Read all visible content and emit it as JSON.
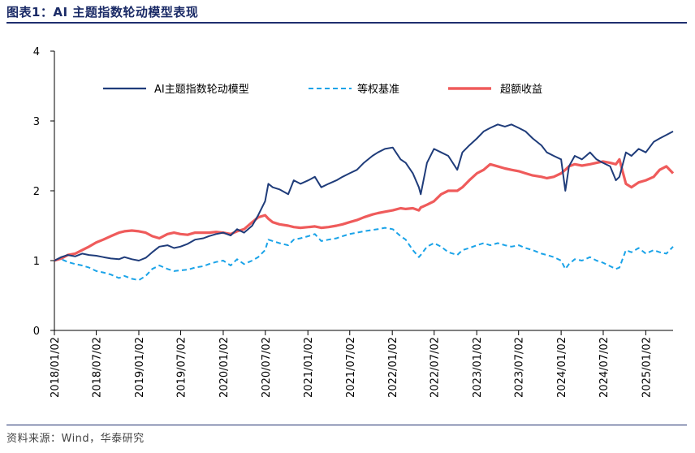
{
  "header": {
    "title": "图表1：AI 主题指数轮动模型表现"
  },
  "footer": {
    "source": "资料来源：Wind，华泰研究"
  },
  "chart_data": {
    "type": "line",
    "y_ticks": [
      "0",
      "1",
      "2",
      "3",
      "4"
    ],
    "ylim": [
      0,
      4
    ],
    "x_tick_labels": [
      "2018/01/02",
      "2018/07/02",
      "2019/01/02",
      "2019/07/02",
      "2020/01/02",
      "2020/07/02",
      "2021/01/02",
      "2021/07/02",
      "2022/01/02",
      "2022/07/02",
      "2023/01/02",
      "2023/07/02",
      "2024/01/02",
      "2024/07/02",
      "2025/01/02"
    ],
    "xlim": [
      "2018/01/02",
      "2025/04/30"
    ],
    "grid": false,
    "legend_position": "top",
    "series": [
      {
        "name": "AI主题指数轮动模型",
        "color": "#1f3c7a",
        "style": "solid",
        "points": [
          [
            "2018/01/02",
            1.0
          ],
          [
            "2018/02/01",
            1.05
          ],
          [
            "2018/03/01",
            1.08
          ],
          [
            "2018/04/02",
            1.06
          ],
          [
            "2018/05/02",
            1.1
          ],
          [
            "2018/06/01",
            1.08
          ],
          [
            "2018/07/02",
            1.07
          ],
          [
            "2018/08/01",
            1.05
          ],
          [
            "2018/09/03",
            1.03
          ],
          [
            "2018/10/08",
            1.02
          ],
          [
            "2018/11/01",
            1.05
          ],
          [
            "2018/12/03",
            1.02
          ],
          [
            "2019/01/02",
            1.0
          ],
          [
            "2019/02/01",
            1.04
          ],
          [
            "2019/03/01",
            1.12
          ],
          [
            "2019/04/01",
            1.2
          ],
          [
            "2019/05/06",
            1.22
          ],
          [
            "2019/06/03",
            1.18
          ],
          [
            "2019/07/01",
            1.2
          ],
          [
            "2019/08/01",
            1.24
          ],
          [
            "2019/09/02",
            1.3
          ],
          [
            "2019/10/08",
            1.32
          ],
          [
            "2019/11/01",
            1.35
          ],
          [
            "2019/12/02",
            1.38
          ],
          [
            "2020/01/02",
            1.4
          ],
          [
            "2020/02/03",
            1.36
          ],
          [
            "2020/03/02",
            1.45
          ],
          [
            "2020/04/01",
            1.4
          ],
          [
            "2020/05/06",
            1.5
          ],
          [
            "2020/06/01",
            1.65
          ],
          [
            "2020/07/01",
            1.85
          ],
          [
            "2020/07/15",
            2.1
          ],
          [
            "2020/08/03",
            2.05
          ],
          [
            "2020/09/01",
            2.02
          ],
          [
            "2020/10/09",
            1.95
          ],
          [
            "2020/11/02",
            2.15
          ],
          [
            "2020/12/01",
            2.1
          ],
          [
            "2021/01/04",
            2.15
          ],
          [
            "2021/02/01",
            2.2
          ],
          [
            "2021/03/01",
            2.05
          ],
          [
            "2021/04/01",
            2.1
          ],
          [
            "2021/05/06",
            2.15
          ],
          [
            "2021/06/01",
            2.2
          ],
          [
            "2021/07/01",
            2.25
          ],
          [
            "2021/08/02",
            2.3
          ],
          [
            "2021/09/01",
            2.4
          ],
          [
            "2021/10/08",
            2.5
          ],
          [
            "2021/11/01",
            2.55
          ],
          [
            "2021/12/01",
            2.6
          ],
          [
            "2022/01/04",
            2.62
          ],
          [
            "2022/02/07",
            2.45
          ],
          [
            "2022/03/01",
            2.4
          ],
          [
            "2022/04/01",
            2.25
          ],
          [
            "2022/04/27",
            2.05
          ],
          [
            "2022/05/05",
            1.95
          ],
          [
            "2022/06/01",
            2.4
          ],
          [
            "2022/07/01",
            2.6
          ],
          [
            "2022/08/01",
            2.55
          ],
          [
            "2022/09/01",
            2.5
          ],
          [
            "2022/10/10",
            2.3
          ],
          [
            "2022/11/01",
            2.55
          ],
          [
            "2022/12/01",
            2.65
          ],
          [
            "2023/01/03",
            2.75
          ],
          [
            "2023/02/01",
            2.85
          ],
          [
            "2023/03/01",
            2.9
          ],
          [
            "2023/04/03",
            2.95
          ],
          [
            "2023/05/04",
            2.92
          ],
          [
            "2023/06/01",
            2.95
          ],
          [
            "2023/07/03",
            2.9
          ],
          [
            "2023/08/01",
            2.85
          ],
          [
            "2023/09/01",
            2.75
          ],
          [
            "2023/10/09",
            2.65
          ],
          [
            "2023/11/01",
            2.55
          ],
          [
            "2023/12/01",
            2.5
          ],
          [
            "2024/01/02",
            2.45
          ],
          [
            "2024/01/20",
            2.0
          ],
          [
            "2024/02/05",
            2.35
          ],
          [
            "2024/03/01",
            2.5
          ],
          [
            "2024/04/01",
            2.45
          ],
          [
            "2024/05/06",
            2.55
          ],
          [
            "2024/06/03",
            2.45
          ],
          [
            "2024/07/01",
            2.4
          ],
          [
            "2024/08/01",
            2.35
          ],
          [
            "2024/08/26",
            2.15
          ],
          [
            "2024/09/10",
            2.2
          ],
          [
            "2024/10/08",
            2.55
          ],
          [
            "2024/11/01",
            2.5
          ],
          [
            "2024/12/02",
            2.6
          ],
          [
            "2025/01/02",
            2.55
          ],
          [
            "2025/02/05",
            2.7
          ],
          [
            "2025/03/03",
            2.75
          ],
          [
            "2025/04/01",
            2.8
          ],
          [
            "2025/04/30",
            2.85
          ]
        ]
      },
      {
        "name": "等权基准",
        "color": "#1aa3e8",
        "style": "dashed",
        "points": [
          [
            "2018/01/02",
            1.0
          ],
          [
            "2018/02/01",
            1.02
          ],
          [
            "2018/03/01",
            0.98
          ],
          [
            "2018/04/02",
            0.95
          ],
          [
            "2018/05/02",
            0.93
          ],
          [
            "2018/06/01",
            0.9
          ],
          [
            "2018/07/02",
            0.85
          ],
          [
            "2018/08/01",
            0.83
          ],
          [
            "2018/09/03",
            0.8
          ],
          [
            "2018/10/08",
            0.75
          ],
          [
            "2018/11/01",
            0.78
          ],
          [
            "2018/12/03",
            0.74
          ],
          [
            "2019/01/02",
            0.72
          ],
          [
            "2019/02/01",
            0.78
          ],
          [
            "2019/03/01",
            0.88
          ],
          [
            "2019/04/01",
            0.93
          ],
          [
            "2019/05/06",
            0.88
          ],
          [
            "2019/06/03",
            0.85
          ],
          [
            "2019/07/01",
            0.86
          ],
          [
            "2019/08/01",
            0.87
          ],
          [
            "2019/09/02",
            0.9
          ],
          [
            "2019/10/08",
            0.92
          ],
          [
            "2019/11/01",
            0.95
          ],
          [
            "2019/12/02",
            0.98
          ],
          [
            "2020/01/02",
            1.0
          ],
          [
            "2020/02/03",
            0.93
          ],
          [
            "2020/03/02",
            1.02
          ],
          [
            "2020/04/01",
            0.95
          ],
          [
            "2020/05/06",
            1.0
          ],
          [
            "2020/06/01",
            1.05
          ],
          [
            "2020/07/01",
            1.15
          ],
          [
            "2020/07/15",
            1.3
          ],
          [
            "2020/08/03",
            1.28
          ],
          [
            "2020/09/01",
            1.25
          ],
          [
            "2020/10/09",
            1.22
          ],
          [
            "2020/11/02",
            1.3
          ],
          [
            "2020/12/01",
            1.32
          ],
          [
            "2021/01/04",
            1.35
          ],
          [
            "2021/02/01",
            1.38
          ],
          [
            "2021/03/01",
            1.28
          ],
          [
            "2021/04/01",
            1.3
          ],
          [
            "2021/05/06",
            1.32
          ],
          [
            "2021/06/01",
            1.35
          ],
          [
            "2021/07/01",
            1.38
          ],
          [
            "2021/08/02",
            1.4
          ],
          [
            "2021/09/01",
            1.42
          ],
          [
            "2021/10/08",
            1.44
          ],
          [
            "2021/11/01",
            1.45
          ],
          [
            "2021/12/01",
            1.47
          ],
          [
            "2022/01/04",
            1.45
          ],
          [
            "2022/02/07",
            1.35
          ],
          [
            "2022/03/01",
            1.3
          ],
          [
            "2022/04/01",
            1.15
          ],
          [
            "2022/04/27",
            1.05
          ],
          [
            "2022/05/05",
            1.08
          ],
          [
            "2022/06/01",
            1.2
          ],
          [
            "2022/07/01",
            1.25
          ],
          [
            "2022/08/01",
            1.2
          ],
          [
            "2022/09/01",
            1.12
          ],
          [
            "2022/10/10",
            1.08
          ],
          [
            "2022/11/01",
            1.15
          ],
          [
            "2022/12/01",
            1.18
          ],
          [
            "2023/01/03",
            1.22
          ],
          [
            "2023/02/01",
            1.25
          ],
          [
            "2023/03/01",
            1.22
          ],
          [
            "2023/04/03",
            1.25
          ],
          [
            "2023/05/04",
            1.22
          ],
          [
            "2023/06/01",
            1.2
          ],
          [
            "2023/07/03",
            1.22
          ],
          [
            "2023/08/01",
            1.18
          ],
          [
            "2023/09/01",
            1.15
          ],
          [
            "2023/10/09",
            1.1
          ],
          [
            "2023/11/01",
            1.08
          ],
          [
            "2023/12/01",
            1.05
          ],
          [
            "2024/01/02",
            1.0
          ],
          [
            "2024/01/20",
            0.88
          ],
          [
            "2024/02/05",
            0.95
          ],
          [
            "2024/03/01",
            1.02
          ],
          [
            "2024/04/01",
            1.0
          ],
          [
            "2024/05/06",
            1.05
          ],
          [
            "2024/06/03",
            1.0
          ],
          [
            "2024/07/01",
            0.97
          ],
          [
            "2024/08/01",
            0.92
          ],
          [
            "2024/08/26",
            0.88
          ],
          [
            "2024/09/10",
            0.9
          ],
          [
            "2024/10/08",
            1.15
          ],
          [
            "2024/11/01",
            1.12
          ],
          [
            "2024/12/02",
            1.18
          ],
          [
            "2025/01/02",
            1.1
          ],
          [
            "2025/02/05",
            1.15
          ],
          [
            "2025/03/03",
            1.12
          ],
          [
            "2025/04/01",
            1.1
          ],
          [
            "2025/04/30",
            1.2
          ]
        ]
      },
      {
        "name": "超额收益",
        "color": "#ef5b5b",
        "style": "solid-thick",
        "points": [
          [
            "2018/01/02",
            1.0
          ],
          [
            "2018/02/01",
            1.03
          ],
          [
            "2018/03/01",
            1.08
          ],
          [
            "2018/04/02",
            1.1
          ],
          [
            "2018/05/02",
            1.15
          ],
          [
            "2018/06/01",
            1.2
          ],
          [
            "2018/07/02",
            1.26
          ],
          [
            "2018/08/01",
            1.3
          ],
          [
            "2018/09/03",
            1.35
          ],
          [
            "2018/10/08",
            1.4
          ],
          [
            "2018/11/01",
            1.42
          ],
          [
            "2018/12/03",
            1.43
          ],
          [
            "2019/01/02",
            1.42
          ],
          [
            "2019/02/01",
            1.4
          ],
          [
            "2019/03/01",
            1.35
          ],
          [
            "2019/04/01",
            1.32
          ],
          [
            "2019/05/06",
            1.38
          ],
          [
            "2019/06/03",
            1.4
          ],
          [
            "2019/07/01",
            1.38
          ],
          [
            "2019/08/01",
            1.37
          ],
          [
            "2019/09/02",
            1.4
          ],
          [
            "2019/10/08",
            1.4
          ],
          [
            "2019/11/01",
            1.4
          ],
          [
            "2019/12/02",
            1.41
          ],
          [
            "2020/01/02",
            1.4
          ],
          [
            "2020/02/03",
            1.38
          ],
          [
            "2020/03/02",
            1.42
          ],
          [
            "2020/04/01",
            1.45
          ],
          [
            "2020/05/06",
            1.55
          ],
          [
            "2020/06/01",
            1.62
          ],
          [
            "2020/07/01",
            1.65
          ],
          [
            "2020/07/15",
            1.6
          ],
          [
            "2020/08/03",
            1.55
          ],
          [
            "2020/09/01",
            1.52
          ],
          [
            "2020/10/09",
            1.5
          ],
          [
            "2020/11/02",
            1.48
          ],
          [
            "2020/12/01",
            1.47
          ],
          [
            "2021/01/04",
            1.48
          ],
          [
            "2021/02/01",
            1.49
          ],
          [
            "2021/03/01",
            1.47
          ],
          [
            "2021/04/01",
            1.48
          ],
          [
            "2021/05/06",
            1.5
          ],
          [
            "2021/06/01",
            1.52
          ],
          [
            "2021/07/01",
            1.55
          ],
          [
            "2021/08/02",
            1.58
          ],
          [
            "2021/09/01",
            1.62
          ],
          [
            "2021/10/08",
            1.66
          ],
          [
            "2021/11/01",
            1.68
          ],
          [
            "2021/12/01",
            1.7
          ],
          [
            "2022/01/04",
            1.72
          ],
          [
            "2022/02/07",
            1.75
          ],
          [
            "2022/03/01",
            1.74
          ],
          [
            "2022/04/01",
            1.75
          ],
          [
            "2022/04/27",
            1.72
          ],
          [
            "2022/05/05",
            1.76
          ],
          [
            "2022/06/01",
            1.8
          ],
          [
            "2022/07/01",
            1.85
          ],
          [
            "2022/08/01",
            1.95
          ],
          [
            "2022/09/01",
            2.0
          ],
          [
            "2022/10/10",
            2.0
          ],
          [
            "2022/11/01",
            2.05
          ],
          [
            "2022/12/01",
            2.15
          ],
          [
            "2023/01/03",
            2.25
          ],
          [
            "2023/02/01",
            2.3
          ],
          [
            "2023/03/01",
            2.38
          ],
          [
            "2023/04/03",
            2.35
          ],
          [
            "2023/05/04",
            2.32
          ],
          [
            "2023/06/01",
            2.3
          ],
          [
            "2023/07/03",
            2.28
          ],
          [
            "2023/08/01",
            2.25
          ],
          [
            "2023/09/01",
            2.22
          ],
          [
            "2023/10/09",
            2.2
          ],
          [
            "2023/11/01",
            2.18
          ],
          [
            "2023/12/01",
            2.2
          ],
          [
            "2024/01/02",
            2.25
          ],
          [
            "2024/01/20",
            2.3
          ],
          [
            "2024/02/05",
            2.35
          ],
          [
            "2024/03/01",
            2.38
          ],
          [
            "2024/04/01",
            2.36
          ],
          [
            "2024/05/06",
            2.38
          ],
          [
            "2024/06/03",
            2.4
          ],
          [
            "2024/07/01",
            2.42
          ],
          [
            "2024/08/01",
            2.4
          ],
          [
            "2024/08/26",
            2.38
          ],
          [
            "2024/09/10",
            2.45
          ],
          [
            "2024/10/08",
            2.1
          ],
          [
            "2024/11/01",
            2.05
          ],
          [
            "2024/12/02",
            2.12
          ],
          [
            "2025/01/02",
            2.15
          ],
          [
            "2025/02/05",
            2.2
          ],
          [
            "2025/03/03",
            2.3
          ],
          [
            "2025/04/01",
            2.35
          ],
          [
            "2025/04/30",
            2.25
          ]
        ]
      }
    ]
  }
}
